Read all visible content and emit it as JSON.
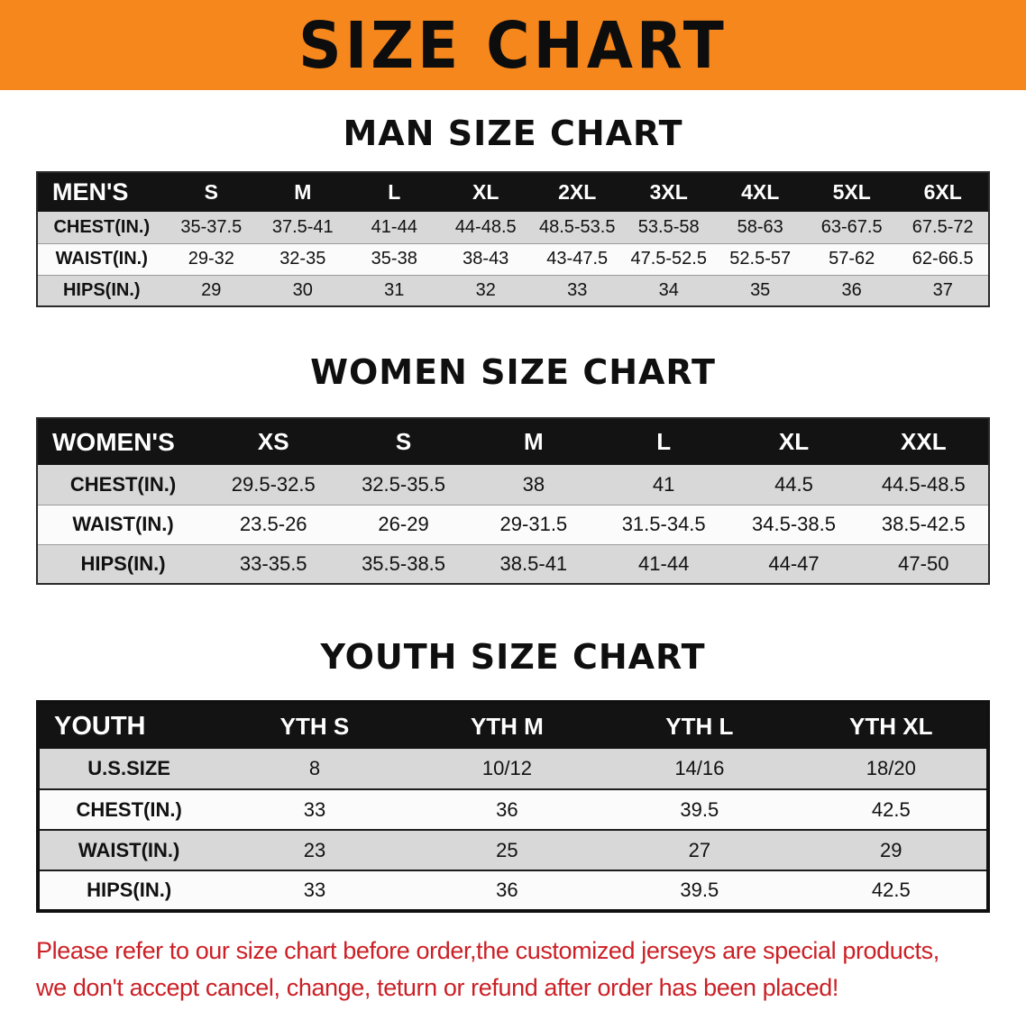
{
  "banner": {
    "title": "SIZE CHART"
  },
  "colors": {
    "banner_orange": "#f6871d",
    "header_black": "#131313",
    "stripe_gray": "#d8d8d8",
    "disclaimer_red": "#cb2026"
  },
  "men": {
    "heading": "MAN SIZE CHART",
    "table": {
      "header": [
        "MEN'S",
        "S",
        "M",
        "L",
        "XL",
        "2XL",
        "3XL",
        "4XL",
        "5XL",
        "6XL"
      ],
      "rows": [
        [
          "CHEST(IN.)",
          "35-37.5",
          "37.5-41",
          "41-44",
          "44-48.5",
          "48.5-53.5",
          "53.5-58",
          "58-63",
          "63-67.5",
          "67.5-72"
        ],
        [
          "WAIST(IN.)",
          "29-32",
          "32-35",
          "35-38",
          "38-43",
          "43-47.5",
          "47.5-52.5",
          "52.5-57",
          "57-62",
          "62-66.5"
        ],
        [
          "HIPS(IN.)",
          "29",
          "30",
          "31",
          "32",
          "33",
          "34",
          "35",
          "36",
          "37"
        ]
      ]
    }
  },
  "women": {
    "heading": "WOMEN SIZE CHART",
    "table": {
      "header": [
        "WOMEN'S",
        "XS",
        "S",
        "M",
        "L",
        "XL",
        "XXL"
      ],
      "rows": [
        [
          "CHEST(IN.)",
          "29.5-32.5",
          "32.5-35.5",
          "38",
          "41",
          "44.5",
          "44.5-48.5"
        ],
        [
          "WAIST(IN.)",
          "23.5-26",
          "26-29",
          "29-31.5",
          "31.5-34.5",
          "34.5-38.5",
          "38.5-42.5"
        ],
        [
          "HIPS(IN.)",
          "33-35.5",
          "35.5-38.5",
          "38.5-41",
          "41-44",
          "44-47",
          "47-50"
        ]
      ]
    }
  },
  "youth": {
    "heading": "YOUTH SIZE CHART",
    "table": {
      "header": [
        "YOUTH",
        "YTH S",
        "YTH M",
        "YTH L",
        "YTH XL"
      ],
      "rows": [
        [
          "U.S.SIZE",
          "8",
          "10/12",
          "14/16",
          "18/20"
        ],
        [
          "CHEST(IN.)",
          "33",
          "36",
          "39.5",
          "42.5"
        ],
        [
          "WAIST(IN.)",
          "23",
          "25",
          "27",
          "29"
        ],
        [
          "HIPS(IN.)",
          "33",
          "36",
          "39.5",
          "42.5"
        ]
      ]
    }
  },
  "footer": {
    "line1": "Please refer to our size chart before order,the customized jerseys are special products,",
    "line2": "we don't accept cancel, change, teturn or refund after order has been placed!"
  }
}
